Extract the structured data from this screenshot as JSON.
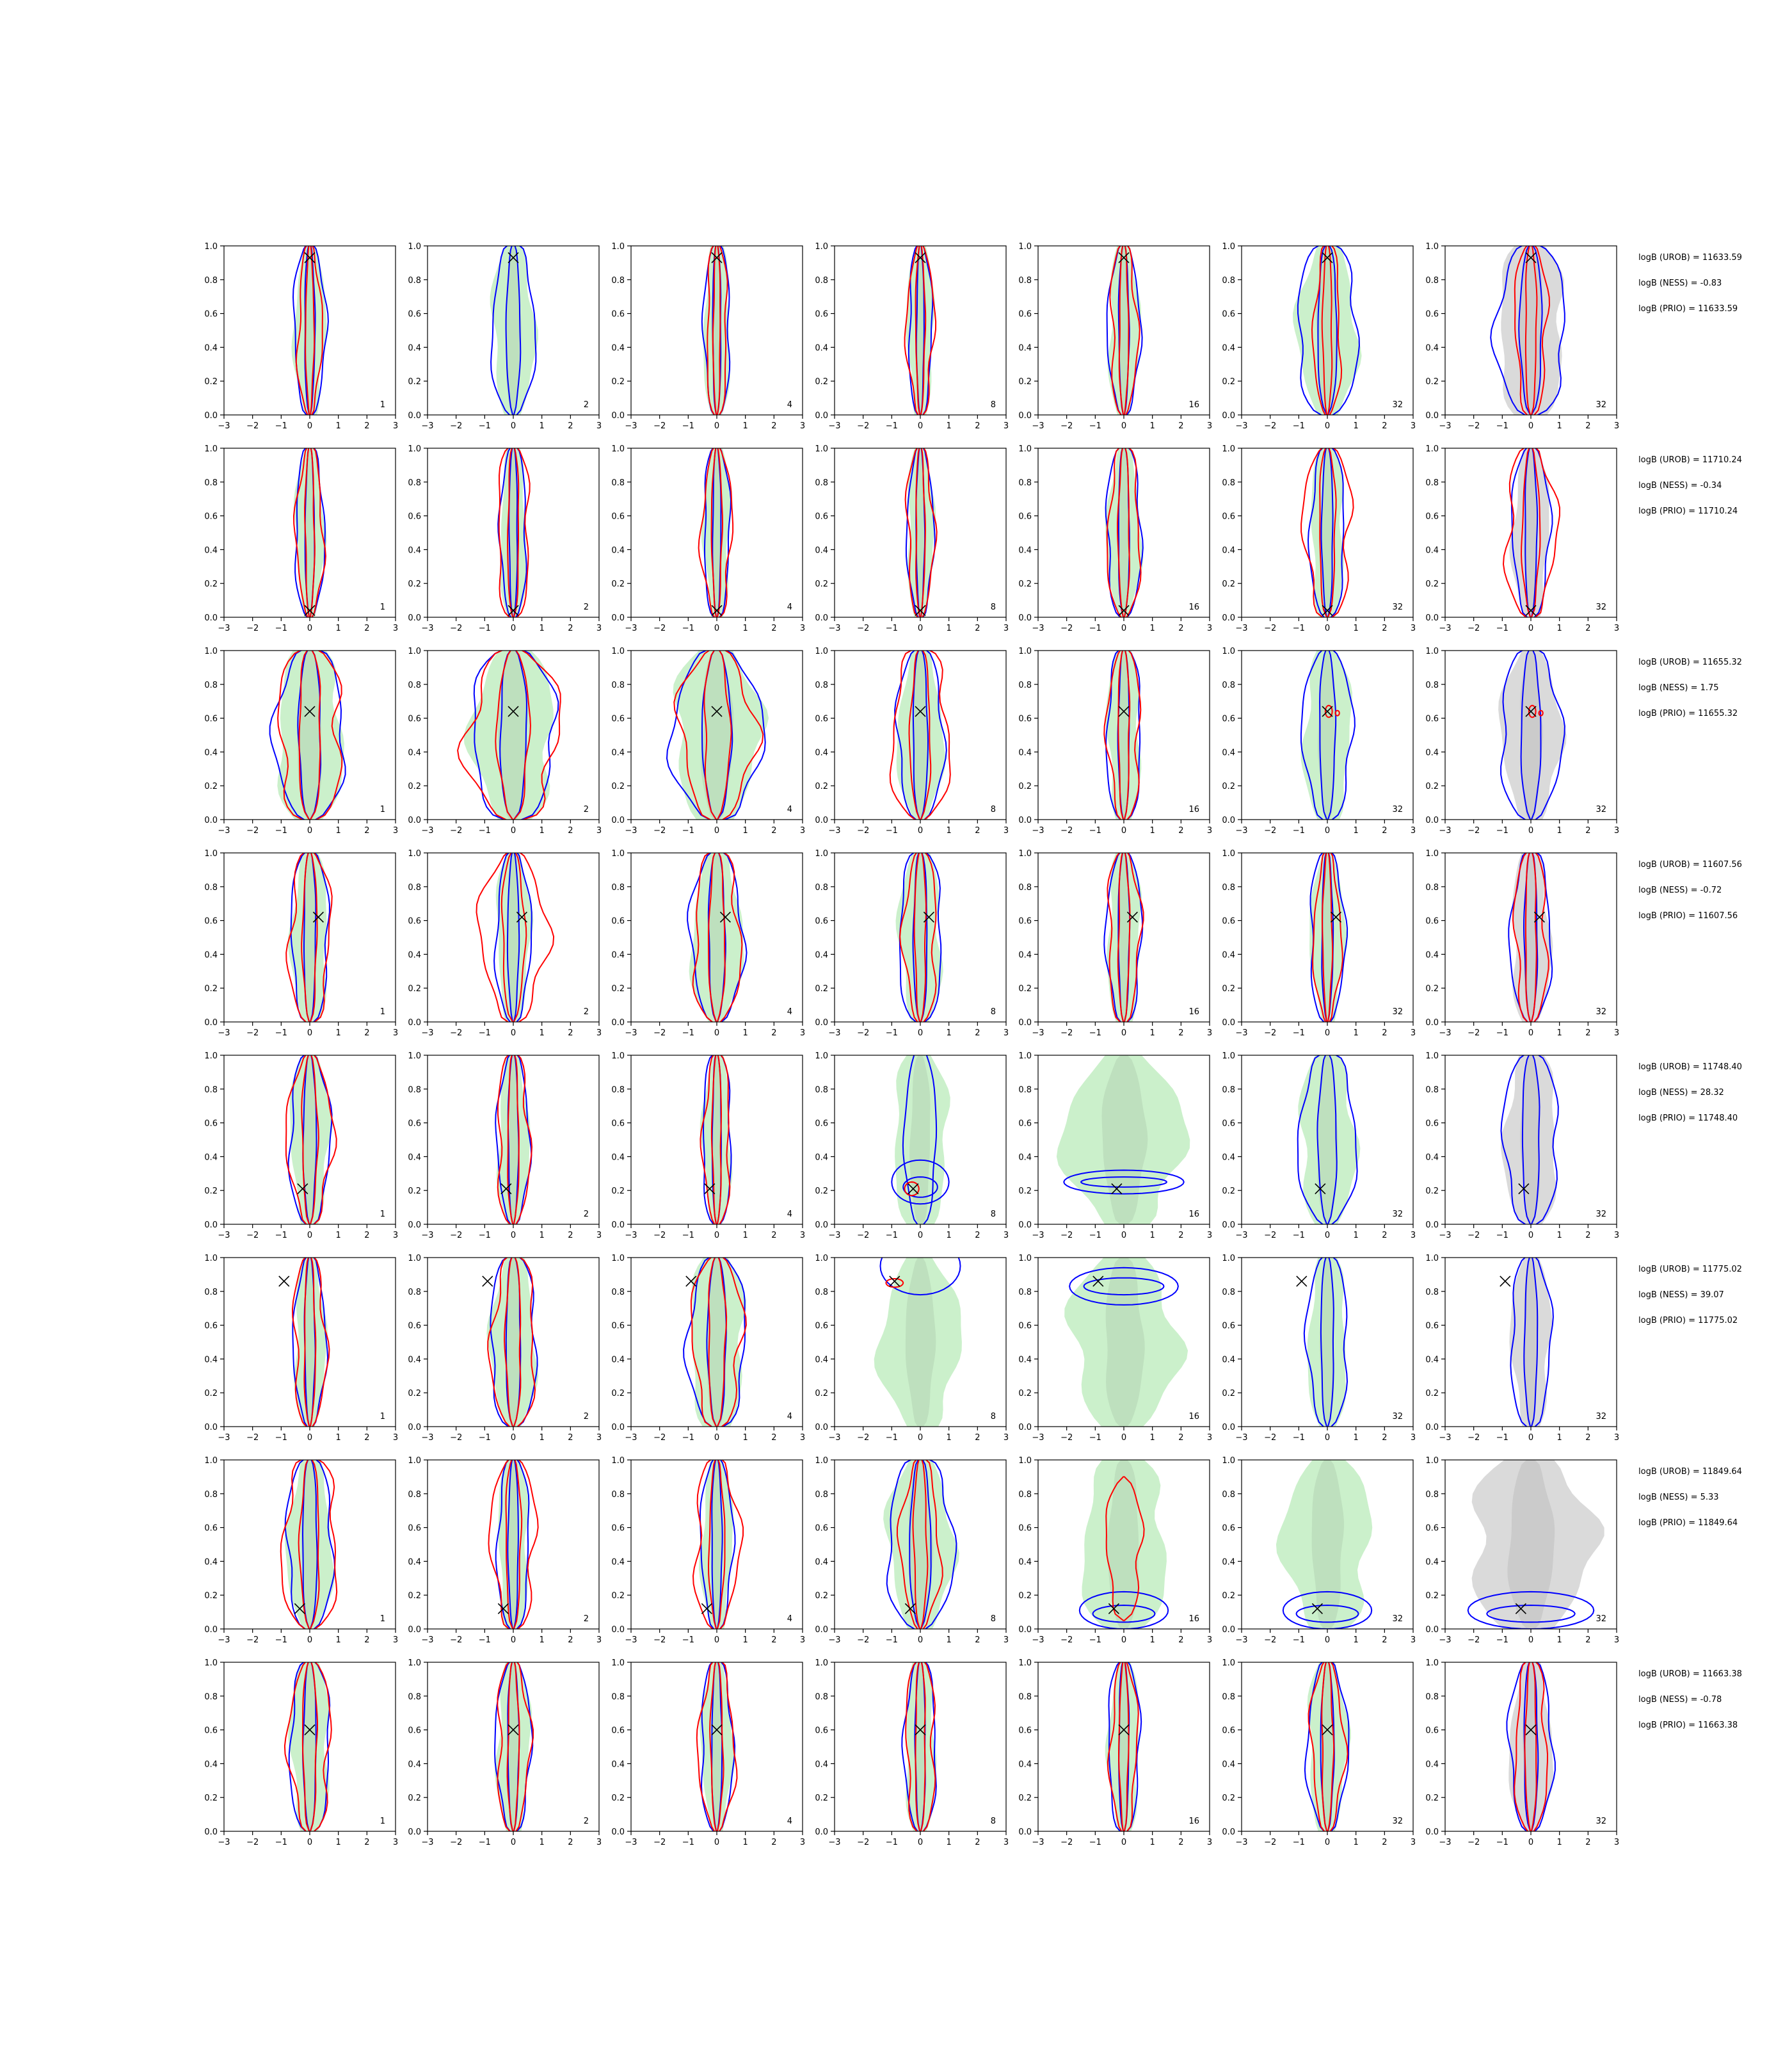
{
  "chart_data": {
    "type": "contour-grid",
    "rows": 8,
    "cols": 7,
    "xlim": [
      -3,
      3
    ],
    "ylim": [
      0.0,
      1.0
    ],
    "x_ticks": [
      -3,
      -2,
      -1,
      0,
      1,
      2,
      3
    ],
    "y_ticks": [
      0.0,
      0.2,
      0.4,
      0.6,
      0.8,
      1.0
    ],
    "x_tick_labels": [
      "−3",
      "−2",
      "−1",
      "0",
      "1",
      "2",
      "3"
    ],
    "y_tick_labels": [
      "0.0",
      "0.2",
      "0.4",
      "0.6",
      "0.8",
      "1.0"
    ],
    "panel_labels": [
      "1",
      "2",
      "4",
      "8",
      "16",
      "32",
      "32"
    ],
    "colors": {
      "blue_contour": "#0000ff",
      "red_contour": "#ff0000",
      "green_fill": "#c8efc8",
      "gray_fill": "#d8d8d8"
    },
    "rows_data": [
      {
        "true_point": [
          0.0,
          0.93
        ],
        "logB": [
          "logB (UROB) = 11633.59",
          "logB (NESS) = -0.83",
          "logB (PRIO) = 11633.59"
        ],
        "panels": [
          {
            "bw": 0.55,
            "rw": 0.4,
            "focus": null
          },
          {
            "bw": 0.75,
            "rw": 0.0,
            "focus": null
          },
          {
            "bw": 0.45,
            "rw": 0.35,
            "focus": null
          },
          {
            "bw": 0.4,
            "rw": 0.45,
            "focus": null
          },
          {
            "bw": 0.55,
            "rw": 0.45,
            "focus": null
          },
          {
            "bw": 1.05,
            "rw": 0.45,
            "focus": null
          },
          {
            "bw": 1.2,
            "rw": 0.55,
            "focus": null
          }
        ]
      },
      {
        "true_point": [
          0.0,
          0.04
        ],
        "logB": [
          "logB (UROB) = 11710.24",
          "logB (NESS) = -0.34",
          "logB (PRIO) = 11710.24"
        ],
        "panels": [
          {
            "bw": 0.5,
            "rw": 0.45,
            "focus": null
          },
          {
            "bw": 0.45,
            "rw": 0.55,
            "focus": null
          },
          {
            "bw": 0.45,
            "rw": 0.5,
            "focus": null
          },
          {
            "bw": 0.45,
            "rw": 0.45,
            "focus": null
          },
          {
            "bw": 0.6,
            "rw": 0.55,
            "focus": null
          },
          {
            "bw": 0.6,
            "rw": 0.8,
            "focus": null
          },
          {
            "bw": 0.65,
            "rw": 0.85,
            "focus": null
          }
        ]
      },
      {
        "true_point": [
          0.0,
          0.64
        ],
        "logB": [
          "logB (UROB) = 11655.32",
          "logB (NESS) = 1.75",
          "logB (PRIO) = 11655.32"
        ],
        "panels": [
          {
            "bw": 1.2,
            "rw": 1.1,
            "focus": null
          },
          {
            "bw": 1.45,
            "rw": 1.55,
            "focus": null
          },
          {
            "bw": 1.55,
            "rw": 1.25,
            "focus": null
          },
          {
            "bw": 0.8,
            "rw": 1.0,
            "focus": null
          },
          {
            "bw": 0.6,
            "rw": 0.55,
            "focus": null
          },
          {
            "bw": 0.85,
            "rw": 0.0,
            "focus": "red-small"
          },
          {
            "bw": 1.05,
            "rw": 0.0,
            "focus": "red-small"
          }
        ]
      },
      {
        "true_point": [
          0.3,
          0.62
        ],
        "logB": [
          "logB (UROB) = 11607.56",
          "logB (NESS) = -0.72",
          "logB (PRIO) = 11607.56"
        ],
        "panels": [
          {
            "bw": 0.65,
            "rw": 0.7,
            "focus": null
          },
          {
            "bw": 0.6,
            "rw": 1.1,
            "focus": null
          },
          {
            "bw": 0.9,
            "rw": 0.8,
            "focus": null
          },
          {
            "bw": 0.75,
            "rw": 0.55,
            "focus": null
          },
          {
            "bw": 0.6,
            "rw": 0.55,
            "focus": null
          },
          {
            "bw": 0.6,
            "rw": 0.45,
            "focus": null
          },
          {
            "bw": 0.7,
            "rw": 0.55,
            "focus": null
          }
        ]
      },
      {
        "true_point": [
          -0.25,
          0.21
        ],
        "logB": [
          "logB (UROB) = 11748.40",
          "logB (NESS) = 28.32",
          "logB (PRIO) = 11748.40"
        ],
        "panels": [
          {
            "bw": 0.7,
            "rw": 0.75,
            "focus": null
          },
          {
            "bw": 0.55,
            "rw": 0.55,
            "focus": null
          },
          {
            "bw": 0.5,
            "rw": 0.45,
            "focus": null
          },
          {
            "bw": 1.0,
            "rw": 0.0,
            "focus": "blue-ellipse"
          },
          {
            "bw": 2.1,
            "rw": 0.0,
            "focus": "blue-band"
          },
          {
            "bw": 1.0,
            "rw": 0.0,
            "focus": "blue-tall"
          },
          {
            "bw": 0.95,
            "rw": 0.0,
            "focus": "blue-tall"
          }
        ]
      },
      {
        "true_point": [
          -0.9,
          0.86
        ],
        "logB": [
          "logB (UROB) = 11775.02",
          "logB (NESS) = 39.07",
          "logB (PRIO) = 11775.02"
        ],
        "panels": [
          {
            "bw": 0.55,
            "rw": 0.55,
            "focus": null
          },
          {
            "bw": 0.8,
            "rw": 0.75,
            "focus": null
          },
          {
            "bw": 1.0,
            "rw": 0.85,
            "focus": null
          },
          {
            "bw": 1.4,
            "rw": 0.0,
            "focus": "blue-top"
          },
          {
            "bw": 1.9,
            "rw": 0.0,
            "focus": "blue-topband"
          },
          {
            "bw": 0.7,
            "rw": 0.0,
            "focus": "blue-tall"
          },
          {
            "bw": 0.7,
            "rw": 0.0,
            "focus": "blue-tall"
          }
        ]
      },
      {
        "true_point": [
          -0.35,
          0.12
        ],
        "logB": [
          "logB (UROB) = 11849.64",
          "logB (NESS) = 5.33",
          "logB (PRIO) = 11849.64"
        ],
        "panels": [
          {
            "bw": 0.8,
            "rw": 0.95,
            "focus": null
          },
          {
            "bw": 0.55,
            "rw": 0.75,
            "focus": null
          },
          {
            "bw": 0.55,
            "rw": 0.75,
            "focus": null
          },
          {
            "bw": 1.15,
            "rw": 0.65,
            "focus": null
          },
          {
            "bw": 1.55,
            "rw": 0.6,
            "focus": "blue-bottom"
          },
          {
            "bw": 1.55,
            "rw": 0.0,
            "focus": "blue-bottom"
          },
          {
            "bw": 2.2,
            "rw": 0.0,
            "focus": "blue-bottom"
          }
        ]
      },
      {
        "true_point": [
          0.0,
          0.6
        ],
        "logB": [
          "logB (UROB) = 11663.38",
          "logB (NESS) = -0.78",
          "logB (PRIO) = 11663.38"
        ],
        "panels": [
          {
            "bw": 0.7,
            "rw": 0.7,
            "focus": null
          },
          {
            "bw": 0.6,
            "rw": 0.55,
            "focus": null
          },
          {
            "bw": 0.55,
            "rw": 0.6,
            "focus": null
          },
          {
            "bw": 0.55,
            "rw": 0.5,
            "focus": null
          },
          {
            "bw": 0.55,
            "rw": 0.45,
            "focus": null
          },
          {
            "bw": 0.7,
            "rw": 0.55,
            "focus": null
          },
          {
            "bw": 0.75,
            "rw": 0.55,
            "focus": null
          }
        ]
      }
    ]
  }
}
